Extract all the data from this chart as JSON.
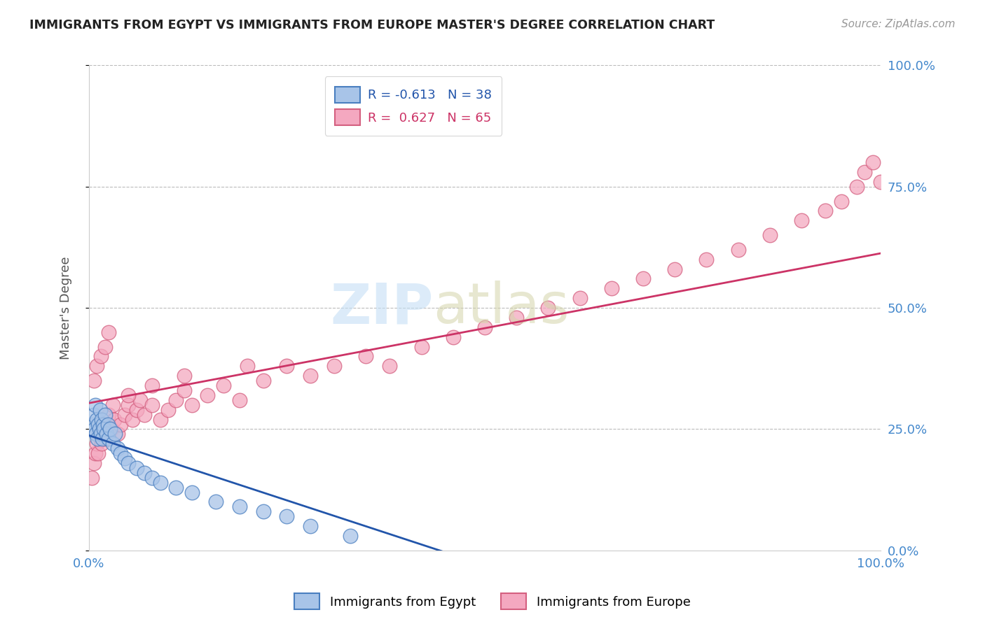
{
  "title": "IMMIGRANTS FROM EGYPT VS IMMIGRANTS FROM EUROPE MASTER'S DEGREE CORRELATION CHART",
  "source": "Source: ZipAtlas.com",
  "ylabel": "Master's Degree",
  "y_tick_values": [
    0,
    0.25,
    0.5,
    0.75,
    1.0
  ],
  "y_tick_labels": [
    "0.0%",
    "25.0%",
    "50.0%",
    "75.0%",
    "100.0%"
  ],
  "xlim": [
    0,
    1
  ],
  "ylim": [
    0,
    1
  ],
  "egypt_color": "#a8c4e8",
  "europe_color": "#f4a8c0",
  "egypt_edge": "#4a7fc0",
  "europe_edge": "#d46080",
  "line_egypt_color": "#2255aa",
  "line_europe_color": "#cc3366",
  "egypt_R": -0.613,
  "egypt_N": 38,
  "europe_R": 0.627,
  "europe_N": 65,
  "background_color": "#ffffff",
  "grid_color": "#bbbbbb",
  "title_color": "#222222",
  "axis_label_color": "#4488cc",
  "egypt_points_x": [
    0.004,
    0.006,
    0.007,
    0.008,
    0.009,
    0.01,
    0.011,
    0.012,
    0.013,
    0.014,
    0.015,
    0.016,
    0.017,
    0.018,
    0.019,
    0.02,
    0.022,
    0.024,
    0.025,
    0.027,
    0.03,
    0.033,
    0.036,
    0.04,
    0.045,
    0.05,
    0.06,
    0.07,
    0.08,
    0.09,
    0.11,
    0.13,
    0.16,
    0.19,
    0.22,
    0.25,
    0.28,
    0.33
  ],
  "egypt_points_y": [
    0.26,
    0.28,
    0.25,
    0.3,
    0.24,
    0.27,
    0.23,
    0.26,
    0.25,
    0.29,
    0.24,
    0.27,
    0.23,
    0.26,
    0.25,
    0.28,
    0.24,
    0.26,
    0.23,
    0.25,
    0.22,
    0.24,
    0.21,
    0.2,
    0.19,
    0.18,
    0.17,
    0.16,
    0.15,
    0.14,
    0.13,
    0.12,
    0.1,
    0.09,
    0.08,
    0.07,
    0.05,
    0.03
  ],
  "europe_points_x": [
    0.004,
    0.006,
    0.008,
    0.01,
    0.012,
    0.014,
    0.016,
    0.018,
    0.02,
    0.022,
    0.025,
    0.028,
    0.032,
    0.036,
    0.04,
    0.045,
    0.05,
    0.055,
    0.06,
    0.065,
    0.07,
    0.08,
    0.09,
    0.1,
    0.11,
    0.12,
    0.13,
    0.15,
    0.17,
    0.19,
    0.22,
    0.25,
    0.28,
    0.31,
    0.35,
    0.38,
    0.42,
    0.46,
    0.5,
    0.54,
    0.58,
    0.62,
    0.66,
    0.7,
    0.74,
    0.78,
    0.82,
    0.86,
    0.9,
    0.93,
    0.95,
    0.97,
    0.98,
    0.99,
    1.0,
    0.006,
    0.01,
    0.015,
    0.02,
    0.025,
    0.03,
    0.05,
    0.08,
    0.12,
    0.2
  ],
  "europe_points_y": [
    0.15,
    0.18,
    0.2,
    0.22,
    0.2,
    0.24,
    0.22,
    0.25,
    0.23,
    0.26,
    0.28,
    0.25,
    0.27,
    0.24,
    0.26,
    0.28,
    0.3,
    0.27,
    0.29,
    0.31,
    0.28,
    0.3,
    0.27,
    0.29,
    0.31,
    0.33,
    0.3,
    0.32,
    0.34,
    0.31,
    0.35,
    0.38,
    0.36,
    0.38,
    0.4,
    0.38,
    0.42,
    0.44,
    0.46,
    0.48,
    0.5,
    0.52,
    0.54,
    0.56,
    0.58,
    0.6,
    0.62,
    0.65,
    0.68,
    0.7,
    0.72,
    0.75,
    0.78,
    0.8,
    0.76,
    0.35,
    0.38,
    0.4,
    0.42,
    0.45,
    0.3,
    0.32,
    0.34,
    0.36,
    0.38
  ]
}
